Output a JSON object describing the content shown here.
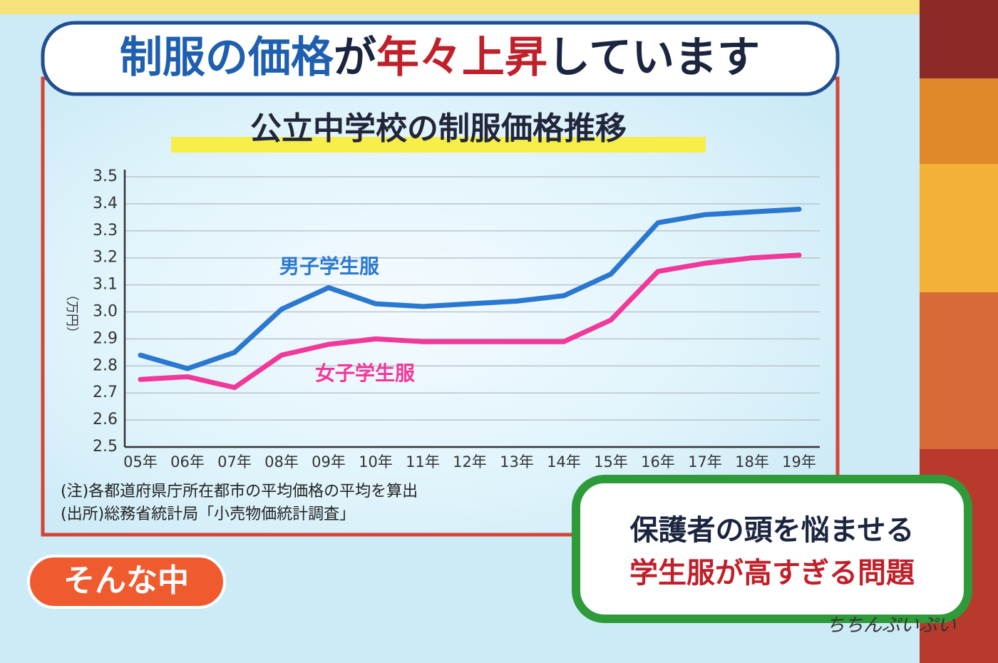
{
  "header": {
    "title": [
      {
        "text": "制服の価格",
        "color": "#1f5fb0"
      },
      {
        "text": "が",
        "color": "#1c2540"
      },
      {
        "text": "年々上昇",
        "color": "#c0202a"
      },
      {
        "text": "しています",
        "color": "#1c2540"
      }
    ]
  },
  "chart_data": {
    "type": "line",
    "title": "公立中学校の制服価格推移",
    "y_label": "（万円）",
    "categories": [
      "05年",
      "06年",
      "07年",
      "08年",
      "09年",
      "10年",
      "11年",
      "12年",
      "13年",
      "14年",
      "15年",
      "16年",
      "17年",
      "18年",
      "19年"
    ],
    "series": [
      {
        "name": "男子学生服",
        "color": "#2b78d0",
        "values": [
          2.84,
          2.79,
          2.85,
          3.01,
          3.09,
          3.03,
          3.02,
          3.03,
          3.04,
          3.06,
          3.14,
          3.33,
          3.36,
          3.37,
          3.38
        ]
      },
      {
        "name": "女子学生服",
        "color": "#f0399a",
        "values": [
          2.75,
          2.76,
          2.72,
          2.84,
          2.88,
          2.9,
          2.89,
          2.89,
          2.89,
          2.89,
          2.97,
          3.15,
          3.18,
          3.2,
          3.21
        ]
      }
    ],
    "ylim": [
      2.5,
      3.5
    ],
    "yticks": [
      2.5,
      2.6,
      2.7,
      2.8,
      2.9,
      {
        "value": 3,
        "label": "3.0"
      },
      3.1,
      3.2,
      3.3,
      3.4,
      3.5
    ],
    "grid": true
  },
  "notes": [
    "(注)各都道府県庁所在都市の平均価格の平均を算出",
    "(出所)総務省統計局「小売物価統計調査」"
  ],
  "badge": "そんな中",
  "caption": [
    {
      "text": "保護者の頭を悩ませる",
      "color": "#1c2540"
    },
    {
      "text": "学生服が高すぎる問題",
      "color": "#c0202a"
    }
  ],
  "logo": "ちちんぷいぷい"
}
